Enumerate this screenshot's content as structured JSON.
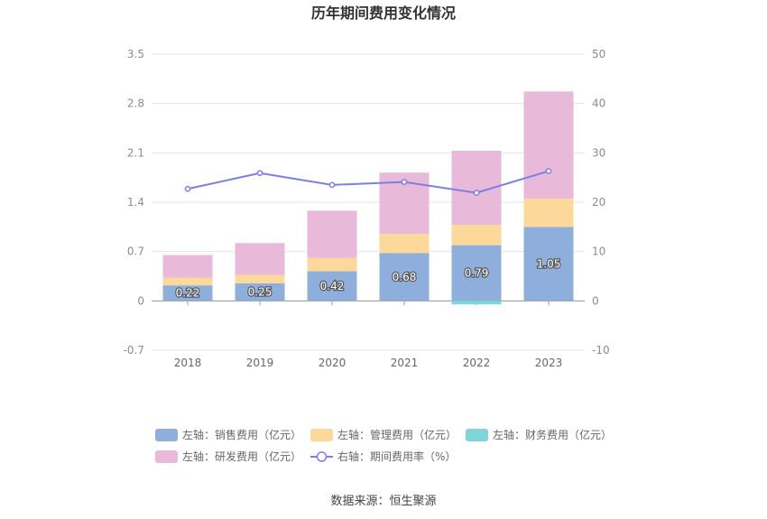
{
  "chart_data": {
    "type": "bar",
    "title": "历年期间费用变化情况",
    "categories": [
      "2018",
      "2019",
      "2020",
      "2021",
      "2022",
      "2023"
    ],
    "left_axis": {
      "min": -0.7,
      "max": 3.5,
      "ticks": [
        "3.5",
        "2.8",
        "2.1",
        "1.4",
        "0.7",
        "0",
        "-0.7"
      ]
    },
    "right_axis": {
      "min": -10,
      "max": 50,
      "ticks": [
        "50",
        "40",
        "30",
        "20",
        "10",
        "0",
        "-10"
      ]
    },
    "stacked": true,
    "series": [
      {
        "name": "左轴：销售费用（亿元）",
        "axis": "left",
        "color": "#8eaedb",
        "values": [
          0.22,
          0.25,
          0.42,
          0.68,
          0.79,
          1.05
        ],
        "labels": [
          "0.22",
          "0.25",
          "0.42",
          "0.68",
          "0.79",
          "1.05"
        ]
      },
      {
        "name": "左轴：管理费用（亿元）",
        "axis": "left",
        "color": "#fcd89b",
        "values": [
          0.11,
          0.12,
          0.19,
          0.27,
          0.29,
          0.4
        ]
      },
      {
        "name": "左轴：财务费用（亿元）",
        "axis": "left",
        "color": "#7fd6d8",
        "values": [
          0.0,
          0.0,
          0.0,
          0.0,
          -0.05,
          0.0
        ]
      },
      {
        "name": "左轴：研发费用（亿元）",
        "axis": "left",
        "color": "#e8b9d9",
        "values": [
          0.32,
          0.45,
          0.67,
          0.87,
          1.05,
          1.52
        ]
      },
      {
        "name": "右轴：期间费用率（%）",
        "axis": "right",
        "type": "line",
        "color": "#7b7fe6",
        "values": [
          22.7,
          25.9,
          23.5,
          24.1,
          21.9,
          26.3
        ]
      }
    ],
    "legend_position": "bottom",
    "grid": true,
    "source": "数据来源：恒生聚源"
  }
}
